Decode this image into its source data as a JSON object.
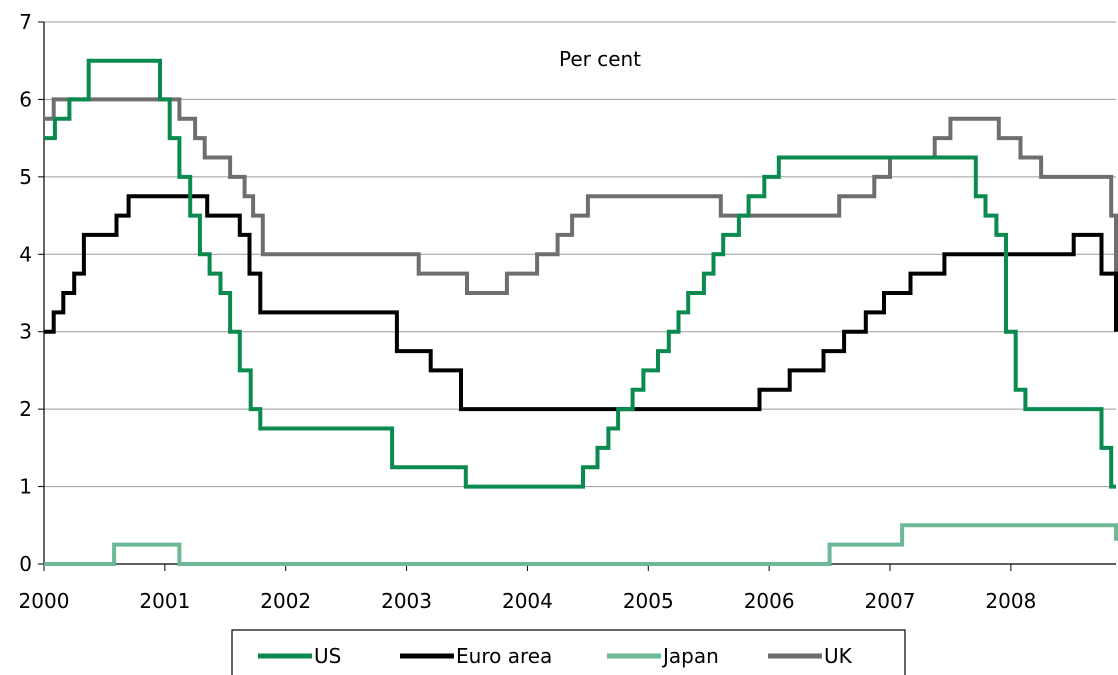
{
  "chart_data": {
    "type": "line",
    "title": "",
    "annotation": "Per cent",
    "xlabel": "",
    "ylabel": "",
    "xlim": [
      2000,
      2008.87
    ],
    "ylim": [
      0,
      7
    ],
    "yticks": [
      0,
      1,
      2,
      3,
      4,
      5,
      6,
      7
    ],
    "xticks": [
      2000,
      2001,
      2002,
      2003,
      2004,
      2005,
      2006,
      2007,
      2008
    ],
    "grid": "horizontal",
    "legend_position": "bottom",
    "series": [
      {
        "name": "US",
        "color": "#0a8a4f",
        "x": [
          2000.0,
          2000.09,
          2000.21,
          2000.37,
          2000.96,
          2001.04,
          2001.12,
          2001.21,
          2001.29,
          2001.37,
          2001.46,
          2001.54,
          2001.62,
          2001.71,
          2001.79,
          2001.87,
          2001.96,
          2002.88,
          2003.49,
          2004.46,
          2004.58,
          2004.67,
          2004.75,
          2004.87,
          2004.96,
          2005.08,
          2005.17,
          2005.25,
          2005.33,
          2005.46,
          2005.54,
          2005.62,
          2005.75,
          2005.83,
          2005.96,
          2006.08,
          2006.17,
          2006.25,
          2006.37,
          2006.49,
          2007.71,
          2007.79,
          2007.88,
          2007.96,
          2008.04,
          2008.12,
          2008.25,
          2008.33,
          2008.75,
          2008.83,
          2008.87
        ],
        "values": [
          5.5,
          5.75,
          6.0,
          6.5,
          6.0,
          5.5,
          5.0,
          4.5,
          4.0,
          3.75,
          3.5,
          3.0,
          2.5,
          2.0,
          1.75,
          1.75,
          1.75,
          1.25,
          1.0,
          1.25,
          1.5,
          1.75,
          2.0,
          2.25,
          2.5,
          2.75,
          3.0,
          3.25,
          3.5,
          3.75,
          4.0,
          4.25,
          4.5,
          4.75,
          5.0,
          5.25,
          5.25,
          5.25,
          5.25,
          5.25,
          4.75,
          4.5,
          4.25,
          3.0,
          2.25,
          2.0,
          2.0,
          2.0,
          1.5,
          1.0,
          1.0
        ]
      },
      {
        "name": "Euro area",
        "color": "#000000",
        "x": [
          2000.0,
          2000.08,
          2000.16,
          2000.25,
          2000.33,
          2000.45,
          2000.6,
          2000.7,
          2001.35,
          2001.62,
          2001.7,
          2001.79,
          2001.87,
          2002.92,
          2003.2,
          2003.45,
          2005.92,
          2006.17,
          2006.45,
          2006.62,
          2006.8,
          2006.95,
          2007.17,
          2007.45,
          2008.52,
          2008.75,
          2008.8,
          2008.87
        ],
        "values": [
          3.0,
          3.25,
          3.5,
          3.75,
          4.25,
          4.25,
          4.5,
          4.75,
          4.5,
          4.25,
          3.75,
          3.25,
          3.25,
          2.75,
          2.5,
          2.0,
          2.25,
          2.5,
          2.75,
          3.0,
          3.25,
          3.5,
          3.75,
          4.0,
          4.25,
          3.75,
          3.75,
          3.0
        ]
      },
      {
        "name": "Japan",
        "color": "#6db897",
        "x": [
          2000.0,
          2000.58,
          2001.12,
          2006.5,
          2007.1,
          2008.83,
          2008.87
        ],
        "values": [
          0.0,
          0.25,
          0.0,
          0.25,
          0.5,
          0.5,
          0.3
        ]
      },
      {
        "name": "UK",
        "color": "#6e6e6e",
        "x": [
          2000.0,
          2000.08,
          2001.12,
          2001.25,
          2001.33,
          2001.54,
          2001.66,
          2001.73,
          2001.81,
          2003.1,
          2003.5,
          2003.83,
          2004.08,
          2004.25,
          2004.37,
          2004.5,
          2005.6,
          2006.58,
          2006.87,
          2007.0,
          2007.37,
          2007.5,
          2007.9,
          2008.08,
          2008.25,
          2008.83,
          2008.87
        ],
        "values": [
          5.75,
          6.0,
          5.75,
          5.5,
          5.25,
          5.0,
          4.75,
          4.5,
          4.0,
          3.75,
          3.5,
          3.75,
          4.0,
          4.25,
          4.5,
          4.75,
          4.5,
          4.75,
          5.0,
          5.25,
          5.5,
          5.75,
          5.5,
          5.25,
          5.0,
          4.5,
          3.0
        ]
      }
    ]
  }
}
